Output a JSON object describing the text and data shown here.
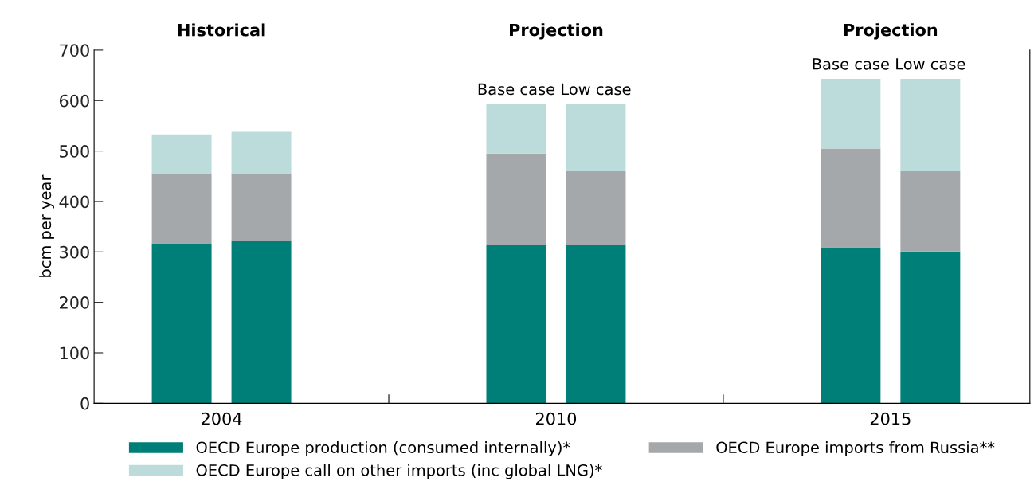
{
  "chart_data": {
    "type": "bar",
    "stacked": true,
    "ylabel": "bcm per year",
    "categories": [
      null,
      null,
      null,
      null,
      null,
      null
    ],
    "series": [
      {
        "name": "OECD Europe production (consumed internally)*",
        "color": "#007f78",
        "values": [
          317,
          321,
          314,
          314,
          309,
          301
        ]
      },
      {
        "name": "OECD Europe imports from Russia**",
        "color": "#a5a8aa",
        "values": [
          139,
          135,
          181,
          146,
          196,
          159
        ]
      },
      {
        "name": "OECD Europe call on other imports (inc global LNG)*",
        "color": "#bcdbdb",
        "values": [
          77,
          82,
          98,
          133,
          138,
          183
        ]
      }
    ],
    "annotations": [
      "Historical",
      "Projection",
      "Projection",
      "2004",
      "2010",
      "2015",
      "Base case",
      "Low case",
      "Base case",
      "Low case"
    ],
    "ylim": [
      0,
      700
    ],
    "yticks": [
      0,
      100,
      200,
      300,
      400,
      500,
      600,
      700
    ],
    "grid": false,
    "legend": "bottom"
  }
}
